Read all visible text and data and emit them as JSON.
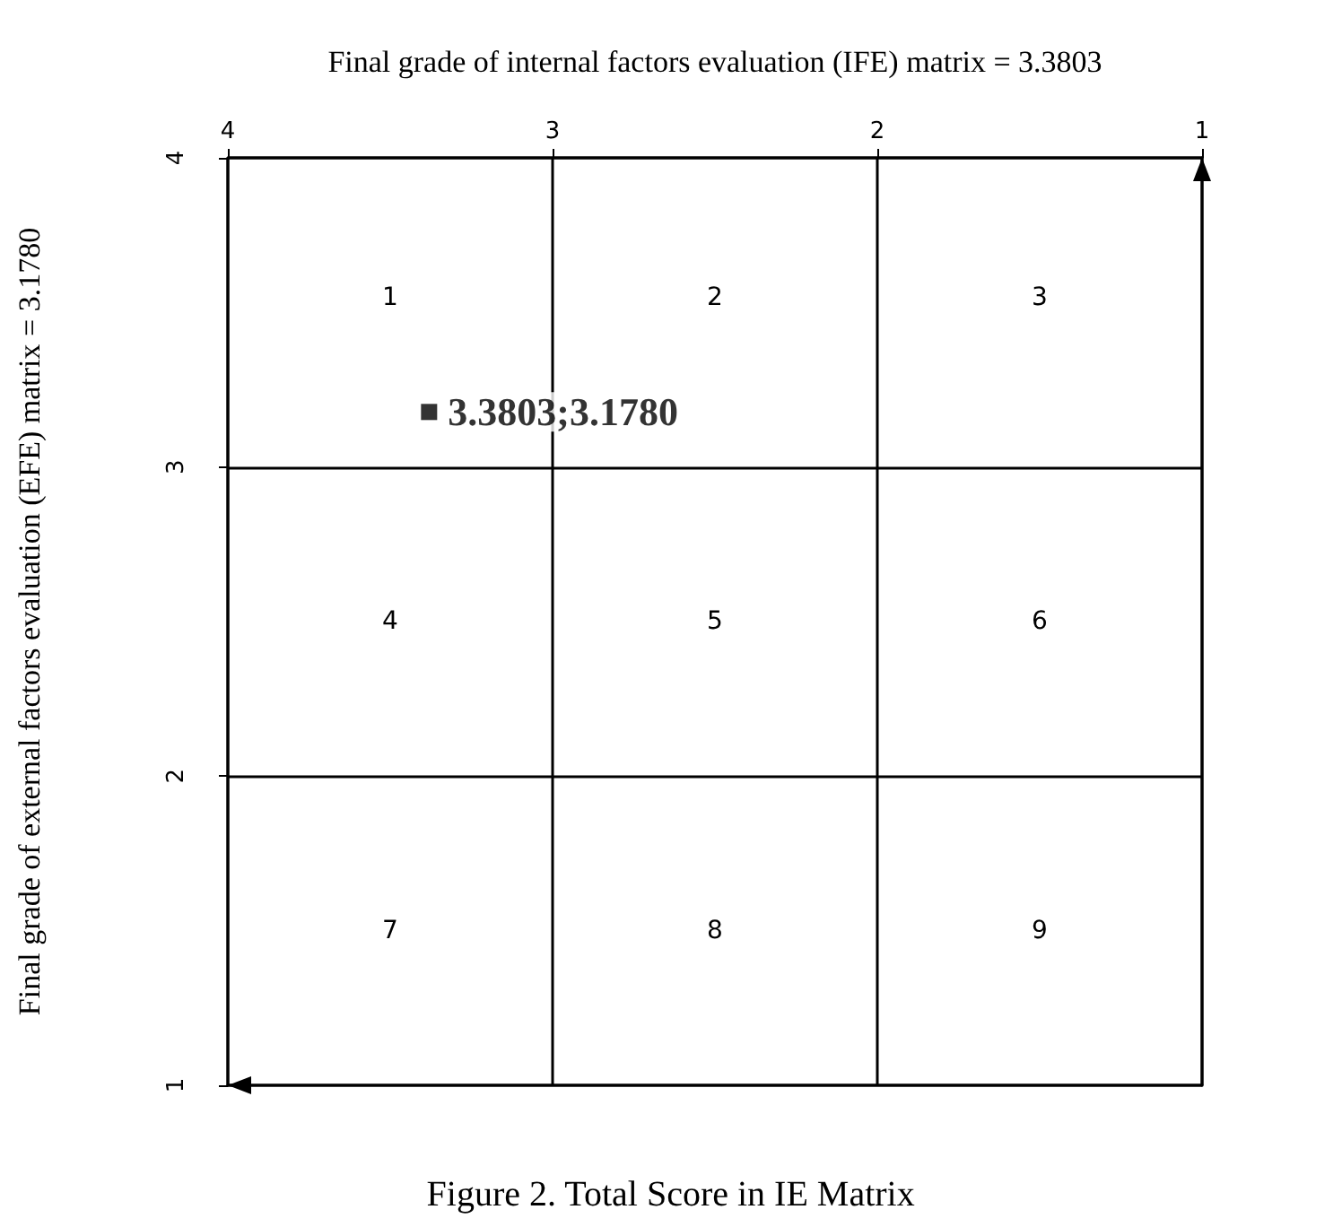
{
  "chart_data": {
    "type": "scatter",
    "xlabel": "Final grade of internal factors evaluation (IFE) matrix = 3.3803",
    "ylabel": "Final grade of external factors evaluation (EFE) matrix = 3.1780",
    "x": [
      3.3803
    ],
    "values": [
      3.178
    ],
    "value_labels": [
      "3.3803;3.1780"
    ],
    "color": "#000000",
    "marker": "square",
    "xlim": [
      4,
      1
    ],
    "xticks": [
      4,
      3,
      2,
      1
    ],
    "ylim": [
      1,
      4
    ],
    "yticks": [
      1,
      2,
      3,
      4
    ],
    "grid": true,
    "annotations": [
      "1",
      "2",
      "3",
      "4",
      "5",
      "6",
      "7",
      "8",
      "9",
      "Figure 2. Total Score in IE Matrix"
    ]
  }
}
